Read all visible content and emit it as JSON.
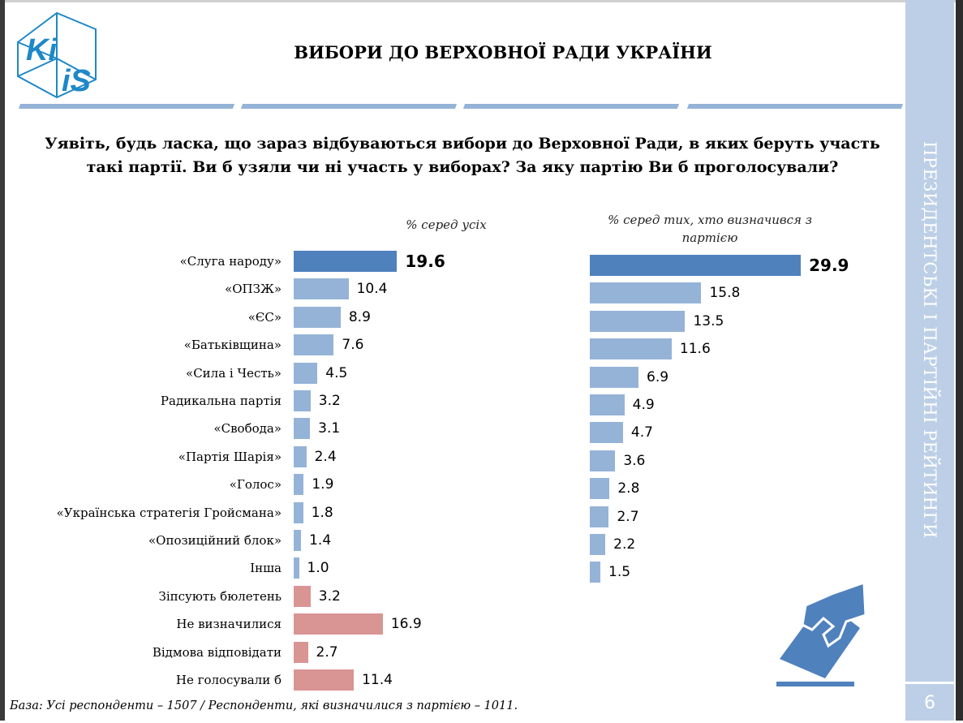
{
  "header": {
    "logo_text": "KiiS",
    "title": "ВИБОРИ ДО ВЕРХОВНОЇ РАДИ УКРАЇНИ"
  },
  "question": "Уявіть, будь ласка, що зараз відбуваються вибори до Верховної Ради, в яких беруть участь такі партії. Ви б узяли чи ні участь у виборах? За яку партію Ви б проголосували?",
  "sidebar": {
    "section_title": "ПРЕЗИДЕНТСЬКІ І ПАРТІЙНІ РЕЙТИНГИ",
    "page_number": "6"
  },
  "footer": "База: Усі респонденти – 1507 / Респонденти, які визначилися з партією – 1011.",
  "colors": {
    "leader": "#4f81bd",
    "party": "#95b3d7",
    "other": "#d99594",
    "accent": "#bccfe6"
  },
  "icons": {
    "ballot": "hand-ballot-icon"
  },
  "chart_data": [
    {
      "type": "bar",
      "orientation": "horizontal",
      "subtitle": "% серед усіх",
      "categories": [
        "«Слуга народу»",
        "«ОПЗЖ»",
        "«ЄС»",
        "«Батьківщина»",
        "«Сила і Честь»",
        "Радикальна партія",
        "«Свобода»",
        "«Партія Шарія»",
        "«Голос»",
        "«Українська стратегія Гройсмана»",
        "«Опозиційний блок»",
        "Інша",
        "Зіпсують бюлетень",
        "Не визначилися",
        "Відмова відповідати",
        "Не голосували б"
      ],
      "values": [
        19.6,
        10.4,
        8.9,
        7.6,
        4.5,
        3.2,
        3.1,
        2.4,
        1.9,
        1.8,
        1.4,
        1.0,
        3.2,
        16.9,
        2.7,
        11.4
      ],
      "value_labels": [
        "19.6",
        "10.4",
        "8.9",
        "7.6",
        "4.5",
        "3.2",
        "3.1",
        "2.4",
        "1.9",
        "1.8",
        "1.4",
        "1.0",
        "3.2",
        "16.9",
        "2.7",
        "11.4"
      ]
    },
    {
      "type": "bar",
      "orientation": "horizontal",
      "subtitle": "% серед тих, хто визначився з партією",
      "categories": [
        "«Слуга народу»",
        "«ОПЗЖ»",
        "«ЄС»",
        "«Батьківщина»",
        "«Сила і Честь»",
        "Радикальна партія",
        "«Свобода»",
        "«Партія Шарія»",
        "«Голос»",
        "«Українська стратегія Гройсмана»",
        "«Опозиційний блок»",
        "Інша"
      ],
      "values": [
        29.9,
        15.8,
        13.5,
        11.6,
        6.9,
        4.9,
        4.7,
        3.6,
        2.8,
        2.7,
        2.2,
        1.5
      ],
      "value_labels": [
        "29.9",
        "15.8",
        "13.5",
        "11.6",
        "6.9",
        "4.9",
        "4.7",
        "3.6",
        "2.8",
        "2.7",
        "2.2",
        "1.5"
      ]
    }
  ]
}
